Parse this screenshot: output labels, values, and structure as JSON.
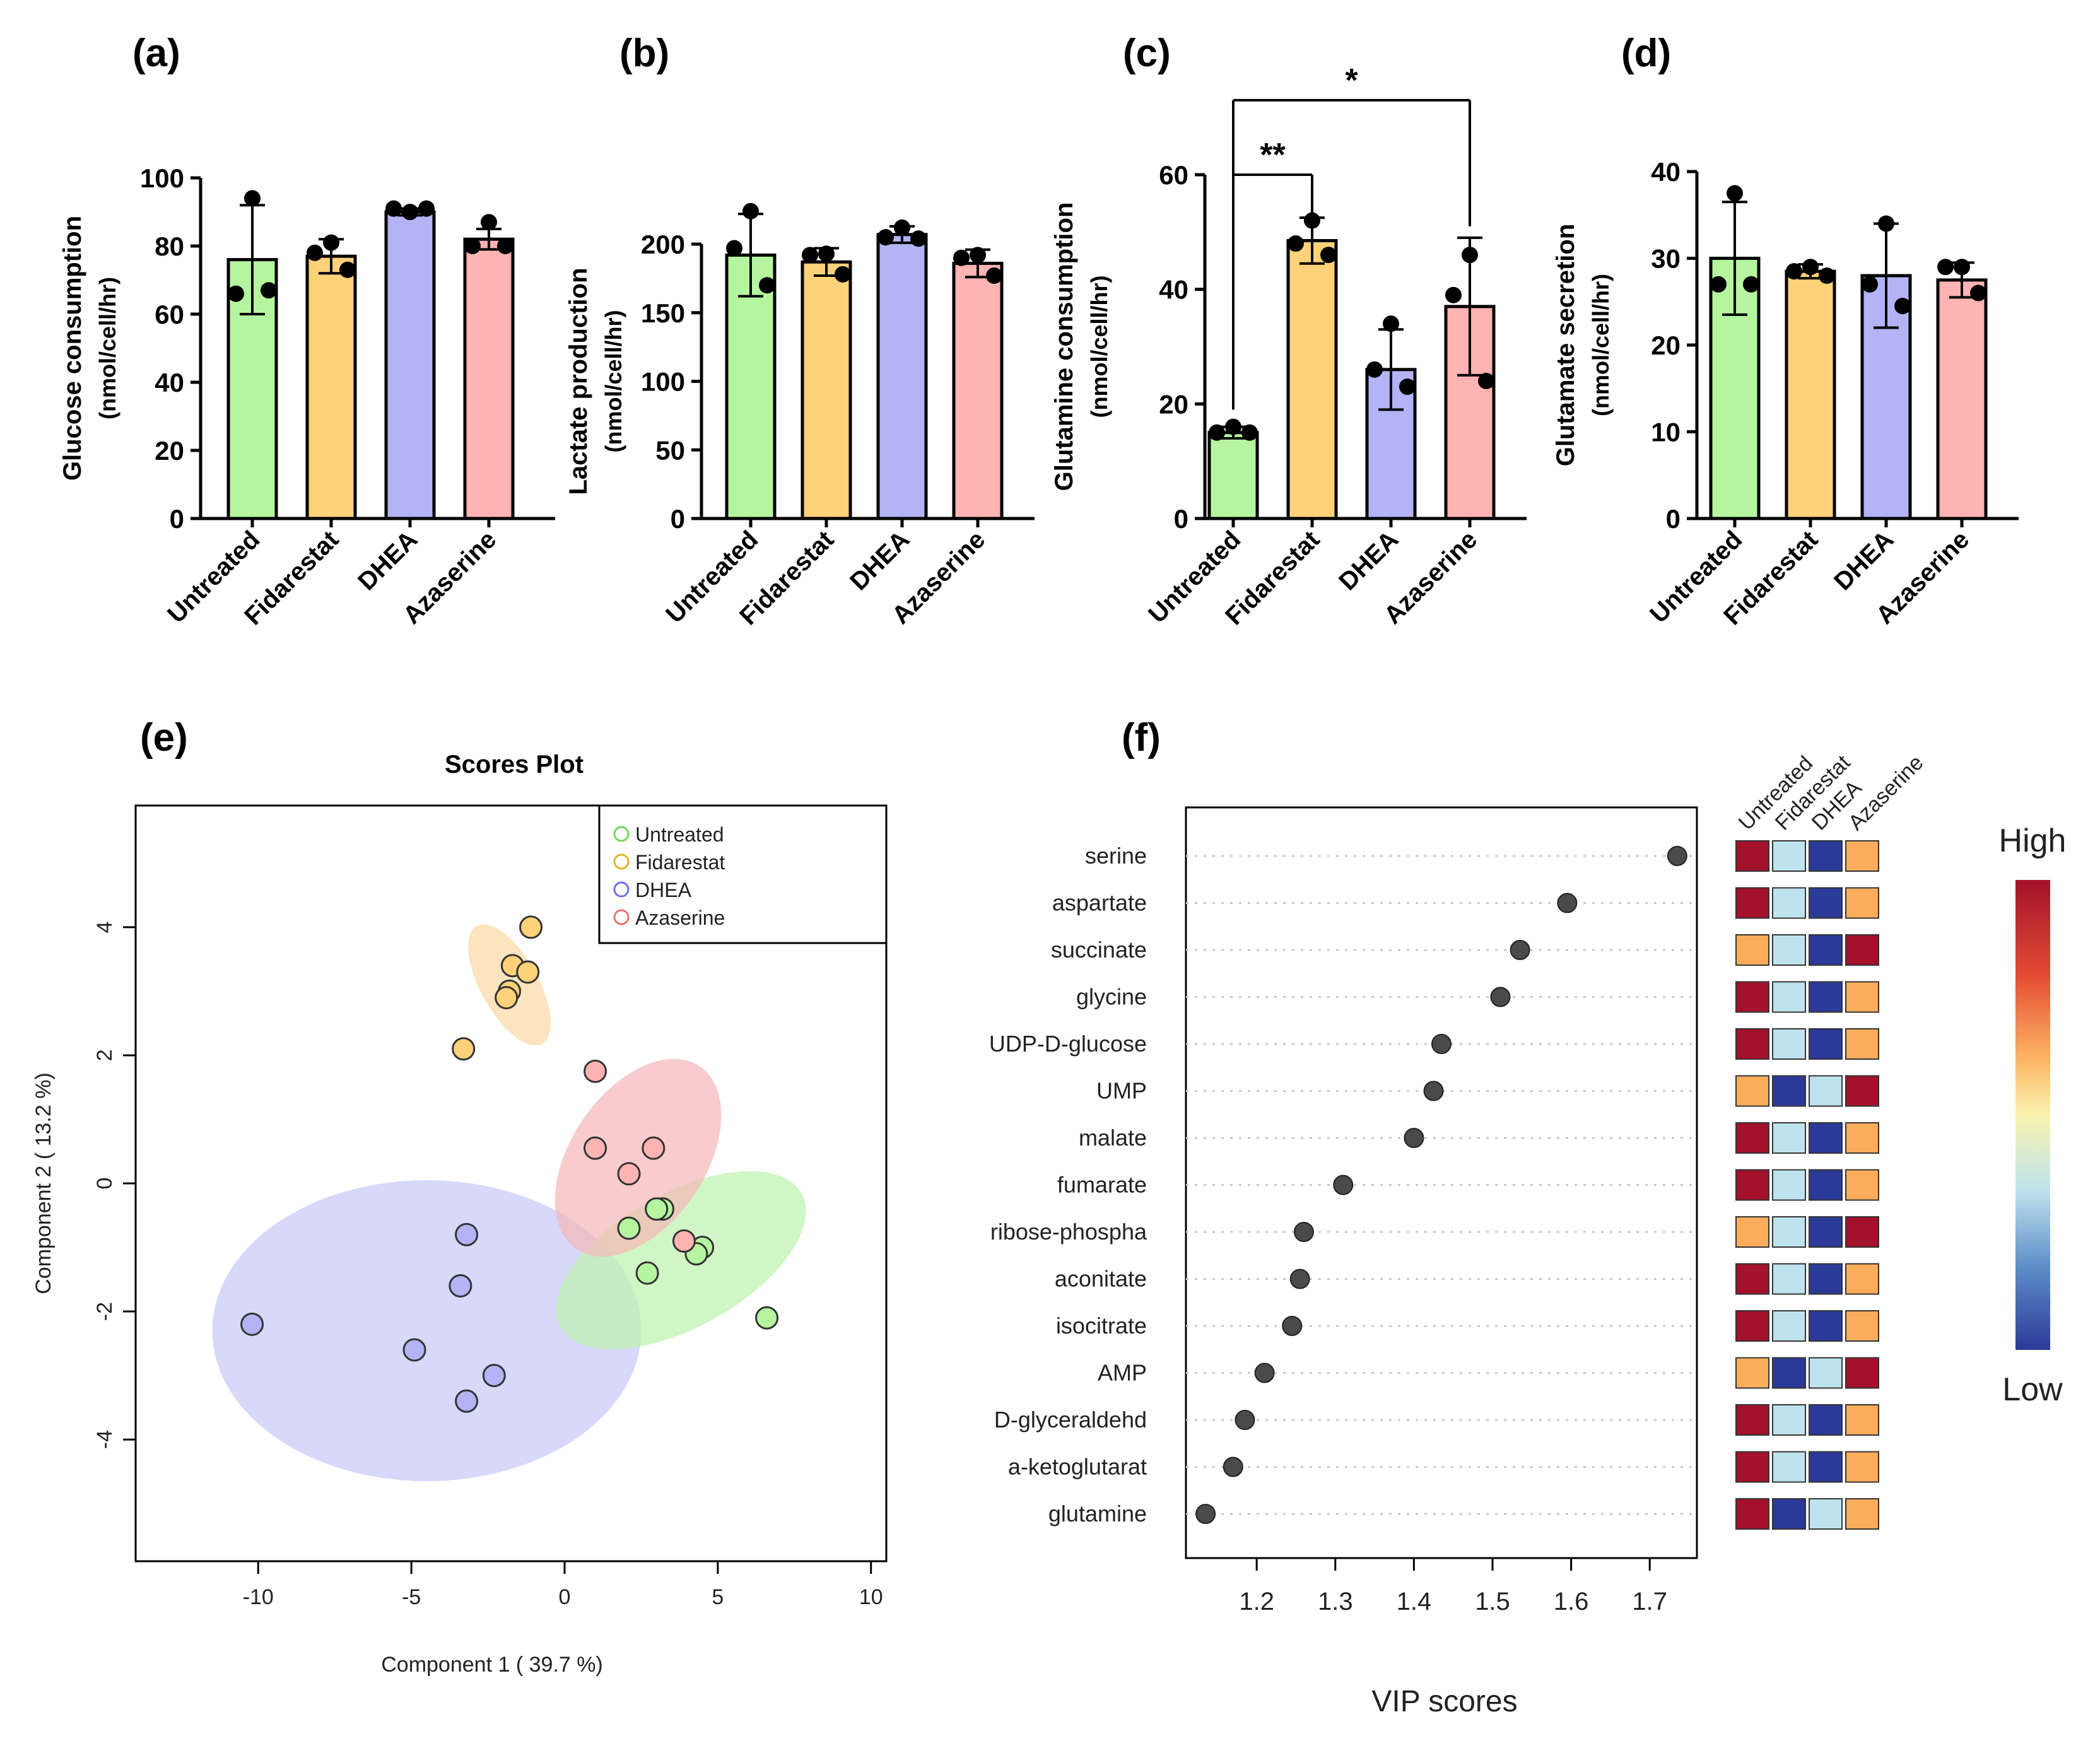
{
  "panel_labels": [
    "(a)",
    "(b)",
    "(c)",
    "(d)",
    "(e)",
    "(f)"
  ],
  "colors": {
    "untreated": "#b5f5a0",
    "fidarestat": "#ffd27a",
    "dhea": "#b3b3f5",
    "azaserine": "#ffb3b3",
    "ellipse_untreated": "#bff2b0",
    "ellipse_fidarestat": "#fbd9a8",
    "ellipse_dhea": "#c9c9fa",
    "ellipse_azaserine": "#f5b8b8",
    "heat_high": "#a3122a",
    "heat_orange": "#fbad5b",
    "heat_light": "#bfe3ee",
    "heat_low": "#2b3a98"
  },
  "chart_data": [
    {
      "id": "a",
      "type": "bar",
      "categories": [
        "Untreated",
        "Fidarestat",
        "DHEA",
        "Azaserine"
      ],
      "ylabel": "Glucose consumption",
      "ylabel2": "(nmol/cell/hr)",
      "ylim": [
        0,
        100
      ],
      "yticks": [
        0,
        20,
        40,
        60,
        80,
        100
      ],
      "tick_labels": [
        "0",
        "20",
        "40",
        "60",
        "80",
        "100"
      ],
      "values": [
        76,
        77,
        90,
        82
      ],
      "err": [
        16,
        5,
        1,
        3
      ],
      "points": [
        [
          94,
          66,
          67
        ],
        [
          81,
          78,
          73
        ],
        [
          90,
          91,
          91
        ],
        [
          87,
          80,
          80
        ]
      ]
    },
    {
      "id": "b",
      "type": "bar",
      "categories": [
        "Untreated",
        "Fidarestat",
        "DHEA",
        "Azaserine"
      ],
      "ylabel": "Lactate production",
      "ylabel2": "(nmol/cell/hr)",
      "ylim": [
        0,
        240
      ],
      "yticks": [
        0,
        50,
        100,
        150,
        200
      ],
      "tick_labels": [
        "0",
        "50",
        "100",
        "150",
        "200"
      ],
      "values": [
        192,
        187,
        207,
        186
      ],
      "err": [
        30,
        10,
        6,
        10
      ],
      "points": [
        [
          224,
          197,
          170
        ],
        [
          193,
          192,
          178
        ],
        [
          212,
          205,
          204
        ],
        [
          192,
          190,
          177
        ]
      ]
    },
    {
      "id": "c",
      "type": "bar",
      "categories": [
        "Untreated",
        "Fidarestat",
        "DHEA",
        "Azaserine"
      ],
      "ylabel": "Glutamine consumption",
      "ylabel2": "(nmol/cell/hr)",
      "ylim": [
        0,
        60
      ],
      "yticks": [
        0,
        20,
        40,
        60
      ],
      "tick_labels": [
        "0",
        "20",
        "40",
        "60"
      ],
      "values": [
        15,
        48.5,
        26,
        37
      ],
      "err": [
        1,
        4,
        7,
        12
      ],
      "points": [
        [
          16,
          15,
          15
        ],
        [
          52,
          48,
          46
        ],
        [
          34,
          26,
          23
        ],
        [
          46,
          39,
          24
        ]
      ],
      "annotations": [
        {
          "from": 0,
          "to": 1,
          "label": "**",
          "y": 60
        },
        {
          "from": 0,
          "to": 3,
          "label": "*",
          "y": 73
        }
      ]
    },
    {
      "id": "d",
      "type": "bar",
      "categories": [
        "Untreated",
        "Fidarestat",
        "DHEA",
        "Azaserine"
      ],
      "ylabel": "Glutamate secretion",
      "ylabel2": "(nmol/cell/hr)",
      "ylim": [
        0,
        40
      ],
      "yticks": [
        0,
        10,
        20,
        30,
        40
      ],
      "tick_labels": [
        "0",
        "10",
        "20",
        "30",
        "40"
      ],
      "values": [
        30,
        28.5,
        28,
        27.5
      ],
      "err": [
        6.5,
        0.8,
        6,
        2
      ],
      "points": [
        [
          37.5,
          27,
          27
        ],
        [
          29,
          28.5,
          28
        ],
        [
          34,
          27,
          24.5
        ],
        [
          29,
          29,
          26
        ]
      ]
    },
    {
      "id": "e",
      "type": "scatter",
      "title": "Scores Plot",
      "xlabel": "Component 1 ( 39.7 %)",
      "ylabel": "Component 2 ( 13.2 %)",
      "xlim": [
        -14,
        10.5
      ],
      "ylim": [
        -5.9,
        5.9
      ],
      "xticks": [
        -10,
        -5,
        0,
        5,
        10
      ],
      "xtick_labels": [
        "-10",
        "-5",
        "0",
        "5",
        "10"
      ],
      "yticks": [
        -4,
        -2,
        0,
        2,
        4
      ],
      "ytick_labels": [
        "-4",
        "-2",
        "0",
        "2",
        "4"
      ],
      "legend": [
        "Untreated",
        "Fidarestat",
        "DHEA",
        "Azaserine"
      ],
      "series": [
        {
          "name": "Untreated",
          "x": [
            2.1,
            3.2,
            3.0,
            2.7,
            4.5,
            4.3,
            6.6
          ],
          "y": [
            -0.7,
            -0.4,
            -0.4,
            -1.4,
            -1.0,
            -1.1,
            -2.1
          ]
        },
        {
          "name": "Fidarestat",
          "x": [
            -1.1,
            -1.7,
            -1.2,
            -1.8,
            -1.9,
            -3.3
          ],
          "y": [
            4.0,
            3.4,
            3.3,
            3.0,
            2.9,
            2.1
          ]
        },
        {
          "name": "DHEA",
          "x": [
            -3.2,
            -3.4,
            -10.2,
            -4.9,
            -2.3,
            -3.2
          ],
          "y": [
            -0.8,
            -1.6,
            -2.2,
            -2.6,
            -3.0,
            -3.4
          ]
        },
        {
          "name": "Azaserine",
          "x": [
            1.0,
            1.0,
            2.9,
            2.1,
            3.9
          ],
          "y": [
            1.75,
            0.55,
            0.55,
            0.15,
            -0.9
          ]
        }
      ],
      "ellipses": [
        {
          "name": "Untreated",
          "cx": 3.8,
          "cy": -1.2,
          "rx": 4.5,
          "ry": 1.05,
          "angle": -29
        },
        {
          "name": "Fidarestat",
          "cx": -1.8,
          "cy": 3.1,
          "rx": 2.2,
          "ry": 0.45,
          "angle": 61
        },
        {
          "name": "DHEA",
          "cx": -4.5,
          "cy": -2.3,
          "rx": 7.0,
          "ry": 2.35,
          "angle": 0
        },
        {
          "name": "Azaserine",
          "cx": 2.4,
          "cy": 0.4,
          "rx": 3.6,
          "ry": 1.05,
          "angle": -56
        }
      ]
    },
    {
      "id": "f",
      "type": "scatter",
      "xlabel": "VIP scores",
      "xlim": [
        1.11,
        1.76
      ],
      "xticks": [
        1.2,
        1.3,
        1.4,
        1.5,
        1.6,
        1.7
      ],
      "xtick_labels": [
        "1.2",
        "1.3",
        "1.4",
        "1.5",
        "1.6",
        "1.7"
      ],
      "metabolites": [
        "serine",
        "aspartate",
        "succinate",
        "glycine",
        "UDP-D-glucose",
        "UMP",
        "malate",
        "fumarate",
        "ribose-phospha",
        "aconitate",
        "isocitrate",
        "AMP",
        "D-glyceraldehd",
        "a-ketoglutarat",
        "glutamine"
      ],
      "values": [
        1.735,
        1.595,
        1.535,
        1.51,
        1.435,
        1.425,
        1.4,
        1.31,
        1.26,
        1.255,
        1.245,
        1.21,
        1.185,
        1.17,
        1.135
      ],
      "heatmap_columns": [
        "Untreated",
        "Fidarestat",
        "DHEA",
        "Azaserine"
      ],
      "heatmap": [
        [
          "H",
          "L",
          "D",
          "O"
        ],
        [
          "H",
          "L",
          "D",
          "O"
        ],
        [
          "O",
          "L",
          "D",
          "H"
        ],
        [
          "H",
          "L",
          "D",
          "O"
        ],
        [
          "H",
          "L",
          "D",
          "O"
        ],
        [
          "O",
          "D",
          "L",
          "H"
        ],
        [
          "H",
          "L",
          "D",
          "O"
        ],
        [
          "H",
          "L",
          "D",
          "O"
        ],
        [
          "O",
          "L",
          "D",
          "H"
        ],
        [
          "H",
          "L",
          "D",
          "O"
        ],
        [
          "H",
          "L",
          "D",
          "O"
        ],
        [
          "O",
          "D",
          "L",
          "H"
        ],
        [
          "H",
          "L",
          "D",
          "O"
        ],
        [
          "H",
          "L",
          "D",
          "O"
        ],
        [
          "H",
          "D",
          "L",
          "O"
        ]
      ],
      "colorbar": {
        "high": "High",
        "low": "Low"
      }
    }
  ]
}
